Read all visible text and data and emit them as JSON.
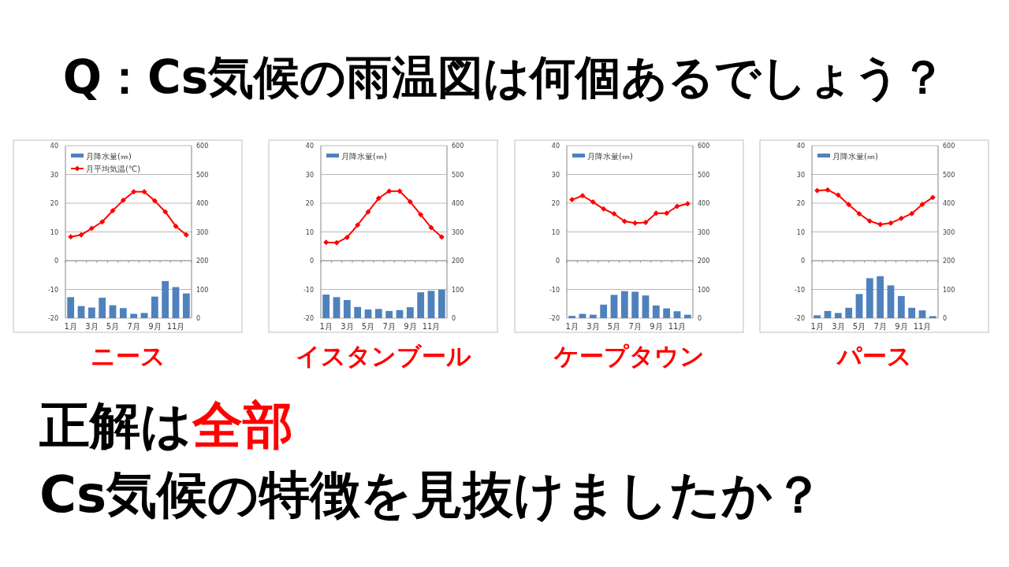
{
  "chart_data": [
    {
      "type": "bar",
      "title": "ニース",
      "annotations": [
        "Q：Cs気候の雨温図は何個あるでしょう？",
        "正解は",
        "全部",
        "Cs気候の特徴を見抜けましたか？"
      ],
      "categories": [
        "1月",
        null,
        "3月",
        null,
        "5月",
        null,
        "7月",
        null,
        "9月",
        null,
        "11月",
        null
      ],
      "ylim": [
        -20,
        40
      ],
      "yticks": [
        -20,
        -10,
        0,
        10,
        20,
        30,
        40
      ],
      "y2lim": [
        0,
        600
      ],
      "y2ticks": [
        0,
        100,
        200,
        300,
        400,
        500,
        600
      ],
      "grid": "y",
      "legend": "top left",
      "series": [
        {
          "name": "月降水量(㎜)",
          "axis": "y2",
          "color": "#4f81bd",
          "values": [
            73,
            42,
            37,
            71,
            45,
            35,
            15,
            18,
            75,
            129,
            108,
            86
          ]
        },
        {
          "name": "月平均気温(℃)",
          "type": "line",
          "axis": "y",
          "marker": "diamond",
          "color": "#ff0000",
          "values": [
            8.3,
            9,
            11.2,
            13.5,
            17.4,
            21,
            24,
            24,
            20.8,
            17,
            12,
            9
          ]
        }
      ]
    },
    {
      "type": "bar",
      "title": "イスタンブール",
      "categories": [
        "1月",
        null,
        "3月",
        null,
        "5月",
        null,
        "7月",
        null,
        "9月",
        null,
        "11月",
        null
      ],
      "ylim": [
        -20,
        40
      ],
      "yticks": [
        -20,
        -10,
        0,
        10,
        20,
        30,
        40
      ],
      "y2lim": [
        0,
        600
      ],
      "y2ticks": [
        0,
        100,
        200,
        300,
        400,
        500,
        600
      ],
      "grid": "y",
      "legend": "top left",
      "series": [
        {
          "name": "月降水量(㎜)",
          "axis": "y2",
          "color": "#4f81bd",
          "values": [
            82,
            73,
            63,
            39,
            30,
            32,
            25,
            28,
            38,
            90,
            95,
            99
          ]
        },
        {
          "type": "line",
          "axis": "y",
          "marker": "diamond",
          "color": "#ff0000",
          "values": [
            6.4,
            6.2,
            8.1,
            12.4,
            17,
            21.7,
            24.2,
            24.2,
            20.5,
            16,
            11.5,
            8.2
          ]
        }
      ]
    },
    {
      "type": "bar",
      "title": "ケープタウン",
      "categories": [
        "1月",
        null,
        "3月",
        null,
        "5月",
        null,
        "7月",
        null,
        "9月",
        null,
        "11月",
        null
      ],
      "ylim": [
        -20,
        40
      ],
      "yticks": [
        -20,
        -10,
        0,
        10,
        20,
        30,
        40
      ],
      "y2lim": [
        0,
        600
      ],
      "y2ticks": [
        0,
        100,
        200,
        300,
        400,
        500,
        600
      ],
      "grid": "y",
      "legend": "top left",
      "series": [
        {
          "name": "月降水量(㎜)",
          "axis": "y2",
          "color": "#4f81bd",
          "values": [
            8,
            15,
            12,
            47,
            81,
            94,
            92,
            79,
            44,
            34,
            24,
            12
          ]
        },
        {
          "type": "line",
          "axis": "y",
          "marker": "diamond",
          "color": "#ff0000",
          "values": [
            21.2,
            22.6,
            20.4,
            18,
            16.3,
            13.7,
            13.1,
            13.3,
            16.5,
            16.5,
            18.9,
            19.8
          ]
        }
      ]
    },
    {
      "type": "bar",
      "title": "パース",
      "categories": [
        "1月",
        null,
        "3月",
        null,
        "5月",
        null,
        "7月",
        null,
        "9月",
        null,
        "11月",
        null
      ],
      "ylim": [
        -20,
        40
      ],
      "yticks": [
        -20,
        -10,
        0,
        10,
        20,
        30,
        40
      ],
      "y2lim": [
        0,
        600
      ],
      "y2ticks": [
        0,
        100,
        200,
        300,
        400,
        500,
        600
      ],
      "grid": "y",
      "legend": "top left",
      "series": [
        {
          "name": "月降水量(㎜)",
          "axis": "y2",
          "color": "#4f81bd",
          "values": [
            10,
            25,
            18,
            36,
            84,
            139,
            146,
            114,
            77,
            36,
            27,
            7
          ]
        },
        {
          "type": "line",
          "axis": "y",
          "marker": "diamond",
          "color": "#ff0000",
          "values": [
            24.4,
            24.6,
            22.8,
            19.5,
            16.3,
            13.8,
            12.6,
            13.1,
            14.7,
            16.4,
            19.6,
            22
          ]
        }
      ]
    }
  ]
}
